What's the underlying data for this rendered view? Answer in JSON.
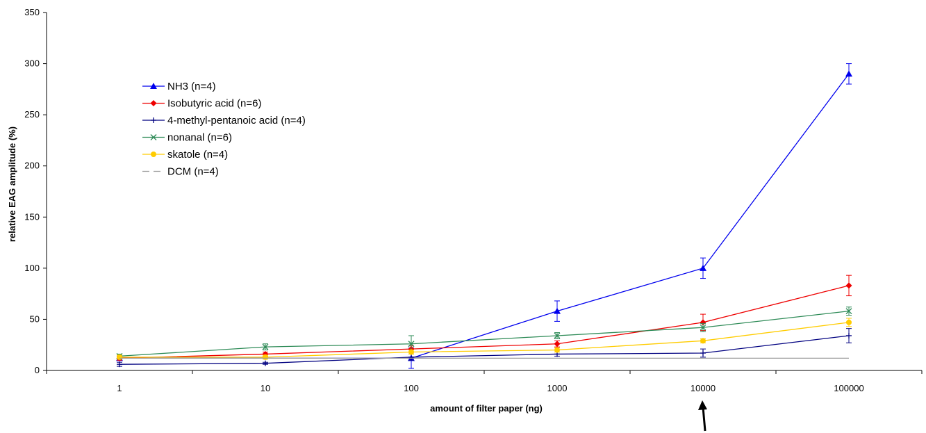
{
  "chart_data": {
    "type": "line",
    "title": "",
    "xlabel": "amount of filter paper (ng)",
    "ylabel": "relative EAG amplitude (%)",
    "x_scale": "log",
    "categories": [
      "1",
      "10",
      "100",
      "1000",
      "10000",
      "100000"
    ],
    "ylim": [
      0,
      350
    ],
    "yticks": [
      "0",
      "50",
      "100",
      "150",
      "200",
      "250",
      "300",
      "350"
    ],
    "grid": false,
    "legend_position": "top-left",
    "series": [
      {
        "name": "NH3 (n=4)",
        "color": "#0000ee",
        "marker": "triangle",
        "values": [
          12,
          null,
          12,
          58,
          100,
          290
        ],
        "errors": [
          2,
          null,
          10,
          10,
          10,
          10
        ]
      },
      {
        "name": "Isobutyric acid (n=6)",
        "color": "#ee0000",
        "marker": "diamond",
        "values": [
          12,
          16,
          21,
          26,
          47,
          83
        ],
        "errors": [
          2,
          2,
          3,
          3,
          8,
          10
        ]
      },
      {
        "name": "4-methyl-pentanoic acid (n=4)",
        "color": "#000080",
        "marker": "plus",
        "values": [
          6,
          7,
          13,
          16,
          17,
          34
        ],
        "errors": [
          2,
          1,
          3,
          2,
          4,
          7
        ]
      },
      {
        "name": "nonanal (n=6)",
        "color": "#2e8b57",
        "marker": "x",
        "values": [
          14,
          23,
          26,
          34,
          42,
          58
        ],
        "errors": [
          2,
          3,
          8,
          3,
          4,
          4
        ]
      },
      {
        "name": "skatole (n=4)",
        "color": "#ffcc00",
        "marker": "circle",
        "values": [
          13,
          13,
          18,
          20,
          29,
          47
        ],
        "errors": [
          2,
          2,
          2,
          2,
          2,
          4
        ]
      },
      {
        "name": "DCM (n=4)",
        "color": "#999999",
        "marker": "none",
        "dashed": true,
        "values": [
          12,
          12,
          12,
          12,
          12,
          12
        ],
        "errors": [
          null,
          null,
          null,
          null,
          null,
          null
        ]
      }
    ],
    "annotations": [
      {
        "type": "arrow",
        "target_category": "10000",
        "direction": "up"
      }
    ]
  }
}
